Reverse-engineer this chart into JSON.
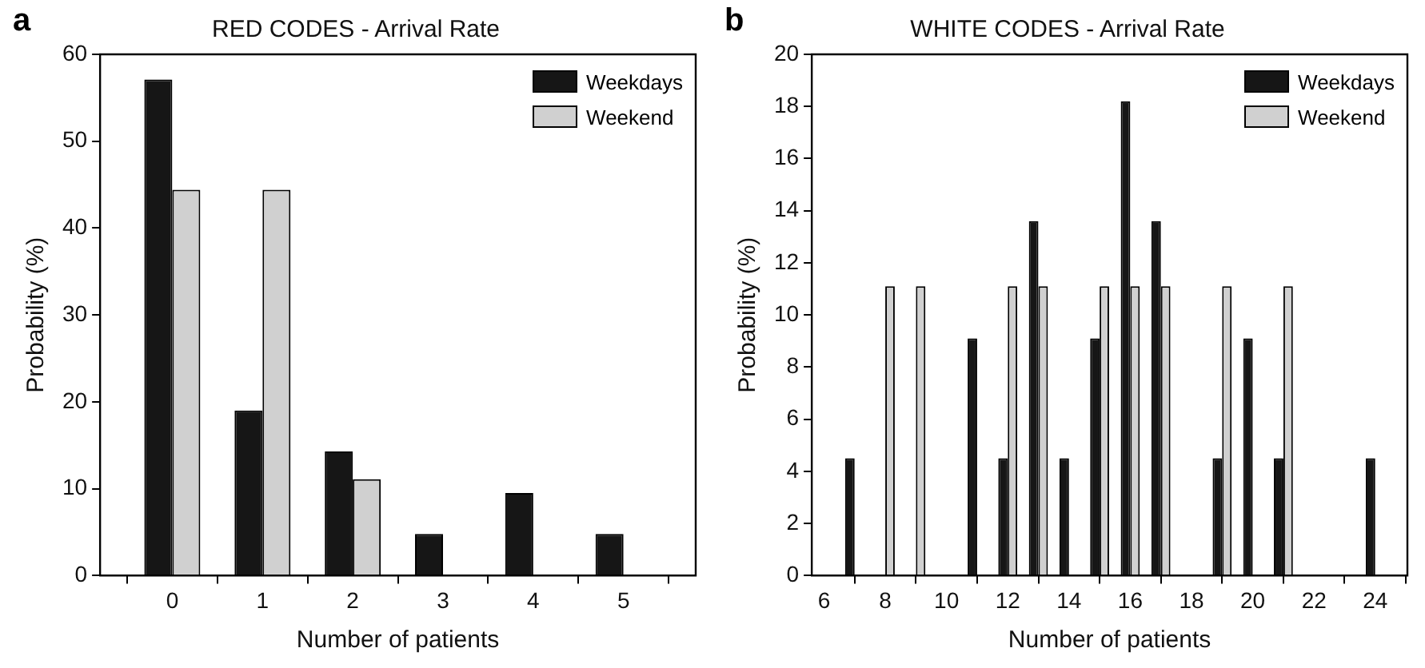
{
  "chart_data": [
    {
      "type": "bar",
      "title": "RED CODES - Arrival Rate",
      "xlabel": "Number of patients",
      "ylabel": "Probability (%)",
      "annotations": [
        "a"
      ],
      "xlim": [
        -0.8,
        5.8
      ],
      "xticks": [
        0,
        1,
        2,
        3,
        4,
        5
      ],
      "ylim": [
        0,
        60
      ],
      "yticks": [
        0,
        10,
        20,
        30,
        40,
        50,
        60
      ],
      "grid": false,
      "legend": "top right",
      "series": [
        {
          "name": "Weekdays",
          "color": "#161616",
          "x": [
            0,
            1,
            2,
            3,
            4,
            5
          ],
          "values": [
            57.1,
            19,
            14.3,
            4.8,
            9.5,
            4.8
          ]
        },
        {
          "name": "Weekend",
          "color": "#d0d0d0",
          "x": [
            0,
            1,
            2
          ],
          "values": [
            44.4,
            44.4,
            11.1
          ]
        }
      ]
    },
    {
      "type": "bar",
      "title": "WHITE CODES - Arrival Rate",
      "xlabel": "Number of patients",
      "ylabel": "Probability (%)",
      "annotations": [
        "b"
      ],
      "xlim": [
        5.6,
        25.05
      ],
      "xticks": [
        6,
        8,
        10,
        12,
        14,
        16,
        18,
        20,
        22,
        24
      ],
      "ylim": [
        0,
        20
      ],
      "yticks": [
        0,
        2,
        4,
        6,
        8,
        10,
        12,
        14,
        16,
        18,
        20
      ],
      "grid": false,
      "legend": "top right",
      "series": [
        {
          "name": "Weekdays",
          "color": "#161616",
          "x": [
            7,
            11,
            12,
            13,
            14,
            15,
            16,
            17,
            19,
            20,
            21,
            24
          ],
          "values": [
            4.5,
            9.1,
            4.5,
            13.6,
            4.5,
            9.1,
            18.2,
            13.6,
            4.5,
            9.1,
            4.5,
            4.5
          ]
        },
        {
          "name": "Weekend",
          "color": "#d0d0d0",
          "x": [
            8,
            9,
            12,
            13,
            15,
            16,
            17,
            19,
            21
          ],
          "values": [
            11.1,
            11.1,
            11.1,
            11.1,
            11.1,
            11.1,
            11.1,
            11.1,
            11.1
          ]
        }
      ]
    }
  ]
}
